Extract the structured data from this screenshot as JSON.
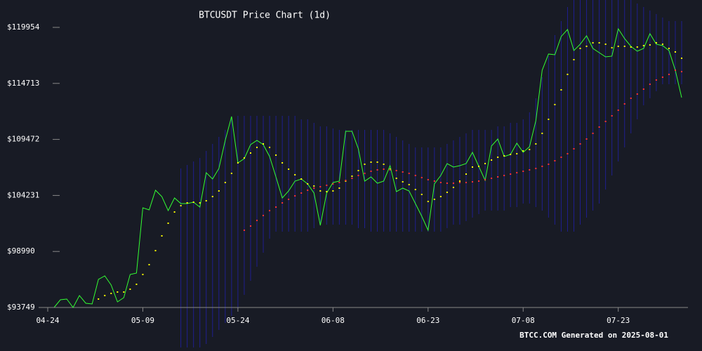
{
  "chart_data": {
    "type": "line",
    "title": "BTCUSDT Price Chart (1d)",
    "footer": "BTCC.COM Generated on 2025-08-01",
    "categories": [
      "04-25",
      "04-26",
      "04-27",
      "04-28",
      "04-29",
      "04-30",
      "05-01",
      "05-02",
      "05-03",
      "05-04",
      "05-05",
      "05-06",
      "05-07",
      "05-08",
      "05-09",
      "05-10",
      "05-11",
      "05-12",
      "05-13",
      "05-14",
      "05-15",
      "05-16",
      "05-17",
      "05-18",
      "05-19",
      "05-20",
      "05-21",
      "05-22",
      "05-23",
      "05-24",
      "05-25",
      "05-26",
      "05-27",
      "05-28",
      "05-29",
      "05-30",
      "05-31",
      "06-01",
      "06-02",
      "06-03",
      "06-04",
      "06-05",
      "06-06",
      "06-07",
      "06-08",
      "06-09",
      "06-10",
      "06-11",
      "06-12",
      "06-13",
      "06-14",
      "06-15",
      "06-16",
      "06-17",
      "06-18",
      "06-19",
      "06-20",
      "06-21",
      "06-22",
      "06-23",
      "06-24",
      "06-25",
      "06-26",
      "06-27",
      "06-28",
      "06-29",
      "06-30",
      "07-01",
      "07-02",
      "07-03",
      "07-04",
      "07-05",
      "07-06",
      "07-07",
      "07-08",
      "07-09",
      "07-10",
      "07-11",
      "07-12",
      "07-13",
      "07-14",
      "07-15",
      "07-16",
      "07-17",
      "07-18",
      "07-19",
      "07-20",
      "07-21",
      "07-22",
      "07-23",
      "07-24",
      "07-25",
      "07-26",
      "07-27",
      "07-28",
      "07-29",
      "07-30",
      "07-31",
      "08-01",
      "08-02"
    ],
    "xticks": [
      "04-24",
      "05-09",
      "05-24",
      "06-08",
      "06-23",
      "07-08",
      "07-23"
    ],
    "ylim": [
      93749,
      119954
    ],
    "yticks": [
      {
        "value": 93749,
        "label": "$93749"
      },
      {
        "value": 98990,
        "label": "$98990"
      },
      {
        "value": 104231,
        "label": "$104231"
      },
      {
        "value": 109472,
        "label": "$109472"
      },
      {
        "value": 114713,
        "label": "$114713"
      },
      {
        "value": 119954,
        "label": "$119954"
      }
    ],
    "series": [
      {
        "style": "line",
        "color": "#33ff33",
        "values": [
          93749,
          94471,
          94537,
          93749,
          94866,
          94143,
          94077,
          96376,
          96705,
          95851,
          94274,
          94669,
          96836,
          96967,
          103076,
          102879,
          104718,
          104126,
          102813,
          103995,
          103470,
          103470,
          103601,
          103141,
          106360,
          105768,
          106754,
          109381,
          111614,
          107279,
          107673,
          108987,
          109381,
          108987,
          107870,
          105966,
          103995,
          104652,
          105571,
          105768,
          105309,
          104455,
          101434,
          104455,
          105440,
          105571,
          110235,
          110235,
          108593,
          105571,
          105966,
          105374,
          105571,
          107016,
          104586,
          104915,
          104652,
          103470,
          102287,
          100974,
          105309,
          106097,
          107213,
          106885,
          107016,
          107213,
          108264,
          106951,
          105637,
          108855,
          109512,
          107870,
          108067,
          109118,
          108264,
          108790,
          111220,
          115949,
          117460,
          117394,
          119102,
          119758,
          117788,
          118379,
          119167,
          117985,
          117591,
          117197,
          117263,
          119824,
          118904,
          118182,
          117722,
          117985,
          119364,
          118379,
          118248,
          117788,
          115949,
          113388
        ]
      },
      {
        "style": "dots",
        "color": "#ffff00",
        "values": [
          null,
          null,
          null,
          null,
          null,
          null,
          null,
          94537,
          94866,
          95063,
          95194,
          95194,
          95457,
          95916,
          96836,
          97755,
          99069,
          100448,
          101631,
          102681,
          103273,
          103535,
          103601,
          103535,
          103732,
          104126,
          104652,
          105440,
          106294,
          107279,
          107739,
          108199,
          108724,
          109052,
          108724,
          108002,
          107279,
          106688,
          106163,
          105768,
          105309,
          105112,
          104652,
          104586,
          104652,
          104915,
          105571,
          106031,
          106557,
          107148,
          107345,
          107345,
          107148,
          106688,
          105834,
          105506,
          105243,
          104783,
          104323,
          103667,
          103864,
          104126,
          104521,
          104980,
          105571,
          106228,
          106885,
          106951,
          107213,
          107542,
          107805,
          107936,
          108067,
          108133,
          108396,
          108527,
          109052,
          110038,
          111351,
          112731,
          114110,
          115555,
          116934,
          117985,
          118182,
          118510,
          118510,
          118379,
          118051,
          118182,
          118182,
          118116,
          118116,
          118248,
          118313,
          118510,
          118379,
          117985,
          117657,
          117065
        ]
      },
      {
        "style": "dots",
        "color": "#ff3333",
        "values": [
          null,
          null,
          null,
          null,
          null,
          null,
          null,
          null,
          null,
          null,
          null,
          null,
          null,
          null,
          null,
          null,
          null,
          null,
          null,
          null,
          null,
          null,
          null,
          null,
          null,
          null,
          null,
          null,
          null,
          null,
          100974,
          101368,
          101893,
          102353,
          102813,
          103141,
          103535,
          103864,
          104192,
          104455,
          104718,
          104915,
          105046,
          105177,
          105309,
          105440,
          105637,
          105834,
          106097,
          106294,
          106491,
          106622,
          106688,
          106622,
          106557,
          106425,
          106294,
          106097,
          105900,
          105703,
          105571,
          105440,
          105374,
          105374,
          105440,
          105440,
          105506,
          105571,
          105703,
          105834,
          105966,
          106097,
          106228,
          106360,
          106491,
          106622,
          106754,
          106951,
          107148,
          107476,
          107805,
          108133,
          108593,
          109052,
          109512,
          110038,
          110629,
          111154,
          111680,
          112205,
          112796,
          113322,
          113716,
          114175,
          114635,
          115029,
          115292,
          115555,
          115949,
          115817
        ]
      }
    ],
    "band": {
      "color": "#1f1f8f",
      "upper": [
        null,
        null,
        null,
        null,
        null,
        null,
        null,
        null,
        null,
        null,
        null,
        null,
        null,
        null,
        null,
        null,
        null,
        null,
        null,
        null,
        106754,
        107082,
        107410,
        107739,
        108396,
        109052,
        109709,
        110366,
        111351,
        111680,
        111680,
        111680,
        111680,
        111680,
        111680,
        111680,
        111680,
        111680,
        111680,
        111351,
        111351,
        111023,
        110694,
        110694,
        110497,
        110366,
        110366,
        110366,
        110366,
        110366,
        110366,
        110366,
        110366,
        110038,
        109709,
        109381,
        109052,
        108724,
        108724,
        108724,
        108724,
        108724,
        109052,
        109381,
        109709,
        110038,
        110366,
        110366,
        110366,
        110366,
        110694,
        110694,
        111023,
        111023,
        111351,
        112008,
        113322,
        115292,
        117262,
        119233,
        120546,
        121860,
        122517,
        122517,
        122517,
        122517,
        122517,
        122517,
        122517,
        122517,
        122517,
        122517,
        122188,
        121860,
        121532,
        121203,
        120875,
        120546,
        120546,
        120546
      ],
      "lower": [
        null,
        null,
        null,
        null,
        null,
        null,
        null,
        null,
        null,
        null,
        null,
        null,
        null,
        null,
        null,
        null,
        null,
        null,
        null,
        null,
        90005,
        90005,
        90005,
        90005,
        90334,
        90990,
        91647,
        92304,
        92961,
        93618,
        94931,
        96245,
        97558,
        98872,
        100186,
        100842,
        100842,
        100842,
        100842,
        100842,
        100842,
        101171,
        101499,
        101499,
        101499,
        101499,
        101499,
        101499,
        101171,
        101171,
        100842,
        100842,
        100842,
        100842,
        100842,
        100842,
        100842,
        100842,
        100842,
        100842,
        100842,
        100842,
        101171,
        101499,
        101499,
        101828,
        102156,
        102484,
        102813,
        102813,
        102813,
        102813,
        103141,
        103141,
        103470,
        103470,
        103141,
        102813,
        102156,
        101499,
        100842,
        100842,
        100842,
        101499,
        102156,
        102813,
        103470,
        104783,
        106097,
        107410,
        108724,
        110038,
        111351,
        112665,
        113322,
        113978,
        114635,
        114635,
        114635,
        114635
      ]
    }
  }
}
